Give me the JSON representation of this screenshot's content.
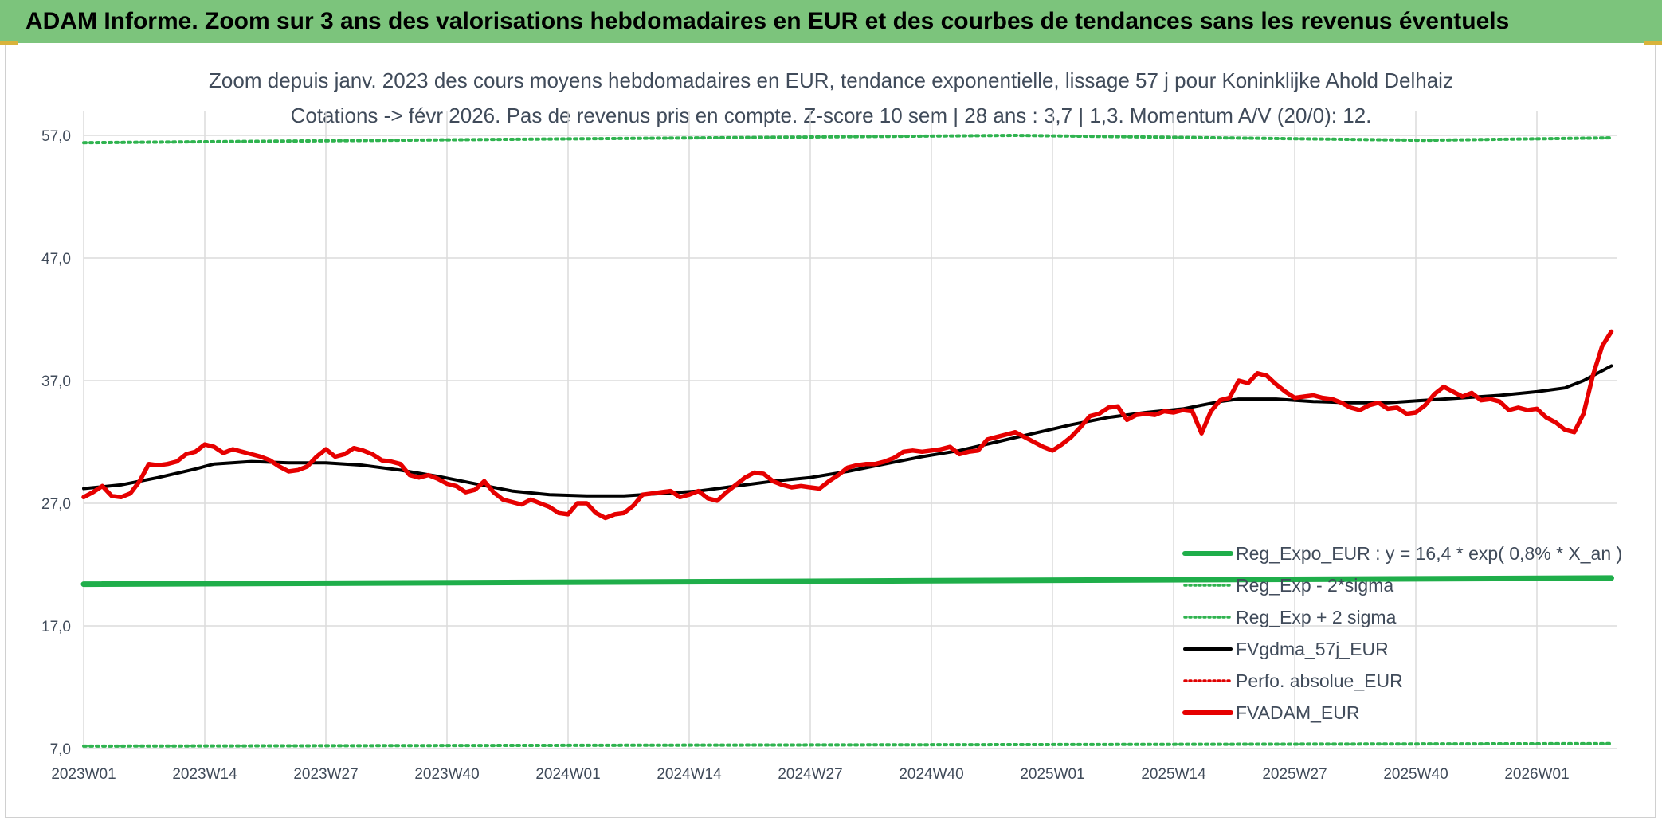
{
  "header": {
    "title": "ADAM Informe. Zoom sur 3 ans des valorisations hebdomadaires en EUR et des courbes de tendances sans les revenus éventuels"
  },
  "colors": {
    "header_bg": "#7cc47c",
    "reg_expo": "#1fae4a",
    "dotted_green": "#2fb34f",
    "fvgdma": "#000000",
    "perfo": "#e00000",
    "fvadam": "#e60000",
    "axis_text": "#404b5a"
  },
  "chart_data": {
    "type": "line",
    "title": "Zoom depuis janv. 2023 des cours moyens hebdomadaires en EUR, tendance exponentielle, lissage 57 j pour Koninklijke Ahold Delhaiz",
    "subtitle": "Cotations -> févr 2026. Pas de revenus pris en compte. Z-score 10 sem | 28 ans : 3,7 | 1,3. Momentum A/V (20/0): 12.",
    "xlabel": "",
    "ylabel": "",
    "ylim": [
      7,
      57
    ],
    "y_ticks": [
      "57,0",
      "47,0",
      "37,0",
      "27,0",
      "17,0",
      "7,0"
    ],
    "y_tick_values": [
      57,
      47,
      37,
      27,
      17,
      7
    ],
    "x_ticks": [
      "2023W01",
      "2023W14",
      "2023W27",
      "2023W40",
      "2024W01",
      "2024W14",
      "2024W27",
      "2024W40",
      "2025W01",
      "2025W14",
      "2025W27",
      "2025W40",
      "2026W01"
    ],
    "x_tick_weeks": [
      0,
      13,
      26,
      39,
      52,
      65,
      78,
      91,
      104,
      117,
      130,
      143,
      156
    ],
    "x_range_weeks": [
      0,
      164
    ],
    "grid": true,
    "legend_position": "bottom-right",
    "legend": [
      {
        "label": "Reg_Expo_EUR : y = 16,4 * exp( 0,8% *  X_an )",
        "style": "thick",
        "color": "#1fae4a"
      },
      {
        "label": "Reg_Exp - 2*sigma",
        "style": "dotted",
        "color": "#2fb34f"
      },
      {
        "label": "Reg_Exp + 2 sigma",
        "style": "dotted",
        "color": "#2fb34f"
      },
      {
        "label": "FVgdma_57j_EUR",
        "style": "solid",
        "color": "#000000"
      },
      {
        "label": "Perfo. absolue_EUR",
        "style": "dotted",
        "color": "#e00000"
      },
      {
        "label": "FVADAM_EUR",
        "style": "thick",
        "color": "#e60000"
      }
    ],
    "series": [
      {
        "name": "Reg_Expo_EUR",
        "points": [
          [
            0,
            20.4
          ],
          [
            164,
            20.9
          ]
        ]
      },
      {
        "name": "Reg_Exp - 2*sigma",
        "points": [
          [
            0,
            7.2
          ],
          [
            164,
            7.4
          ]
        ]
      },
      {
        "name": "Reg_Exp + 2 sigma",
        "points": [
          [
            0,
            56.4
          ],
          [
            100,
            57.0
          ],
          [
            144,
            56.6
          ],
          [
            164,
            56.8
          ]
        ]
      },
      {
        "name": "FVgdma_57j_EUR",
        "points": [
          [
            0,
            28.2
          ],
          [
            4,
            28.5
          ],
          [
            8,
            29.1
          ],
          [
            12,
            29.8
          ],
          [
            14,
            30.2
          ],
          [
            18,
            30.4
          ],
          [
            22,
            30.3
          ],
          [
            26,
            30.3
          ],
          [
            30,
            30.1
          ],
          [
            34,
            29.7
          ],
          [
            38,
            29.2
          ],
          [
            42,
            28.6
          ],
          [
            46,
            28.0
          ],
          [
            50,
            27.7
          ],
          [
            54,
            27.6
          ],
          [
            58,
            27.6
          ],
          [
            62,
            27.8
          ],
          [
            66,
            28.0
          ],
          [
            70,
            28.4
          ],
          [
            74,
            28.8
          ],
          [
            78,
            29.1
          ],
          [
            82,
            29.6
          ],
          [
            86,
            30.2
          ],
          [
            90,
            30.8
          ],
          [
            94,
            31.3
          ],
          [
            98,
            32.0
          ],
          [
            102,
            32.7
          ],
          [
            106,
            33.4
          ],
          [
            110,
            34.0
          ],
          [
            114,
            34.4
          ],
          [
            118,
            34.7
          ],
          [
            122,
            35.3
          ],
          [
            124,
            35.5
          ],
          [
            128,
            35.5
          ],
          [
            132,
            35.3
          ],
          [
            136,
            35.2
          ],
          [
            140,
            35.2
          ],
          [
            144,
            35.4
          ],
          [
            148,
            35.6
          ],
          [
            152,
            35.8
          ],
          [
            156,
            36.1
          ],
          [
            159,
            36.4
          ],
          [
            161,
            37.0
          ],
          [
            164,
            38.2
          ]
        ]
      },
      {
        "name": "FVADAM_EUR",
        "points": [
          [
            0,
            27.5
          ],
          [
            1,
            27.9
          ],
          [
            2,
            28.4
          ],
          [
            3,
            27.6
          ],
          [
            4,
            27.5
          ],
          [
            5,
            27.8
          ],
          [
            6,
            28.8
          ],
          [
            7,
            30.2
          ],
          [
            8,
            30.1
          ],
          [
            9,
            30.2
          ],
          [
            10,
            30.4
          ],
          [
            11,
            31.0
          ],
          [
            12,
            31.2
          ],
          [
            13,
            31.8
          ],
          [
            14,
            31.6
          ],
          [
            15,
            31.1
          ],
          [
            16,
            31.4
          ],
          [
            17,
            31.2
          ],
          [
            18,
            31.0
          ],
          [
            19,
            30.8
          ],
          [
            20,
            30.5
          ],
          [
            21,
            30.0
          ],
          [
            22,
            29.6
          ],
          [
            23,
            29.7
          ],
          [
            24,
            30.0
          ],
          [
            25,
            30.8
          ],
          [
            26,
            31.4
          ],
          [
            27,
            30.8
          ],
          [
            28,
            31.0
          ],
          [
            29,
            31.5
          ],
          [
            30,
            31.3
          ],
          [
            31,
            31.0
          ],
          [
            32,
            30.5
          ],
          [
            33,
            30.4
          ],
          [
            34,
            30.2
          ],
          [
            35,
            29.3
          ],
          [
            36,
            29.1
          ],
          [
            37,
            29.3
          ],
          [
            38,
            29.0
          ],
          [
            39,
            28.6
          ],
          [
            40,
            28.4
          ],
          [
            41,
            27.9
          ],
          [
            42,
            28.1
          ],
          [
            43,
            28.8
          ],
          [
            44,
            27.9
          ],
          [
            45,
            27.3
          ],
          [
            46,
            27.1
          ],
          [
            47,
            26.9
          ],
          [
            48,
            27.3
          ],
          [
            49,
            27.0
          ],
          [
            50,
            26.7
          ],
          [
            51,
            26.2
          ],
          [
            52,
            26.1
          ],
          [
            53,
            27.0
          ],
          [
            54,
            27.0
          ],
          [
            55,
            26.2
          ],
          [
            56,
            25.8
          ],
          [
            57,
            26.1
          ],
          [
            58,
            26.2
          ],
          [
            59,
            26.8
          ],
          [
            60,
            27.7
          ],
          [
            61,
            27.8
          ],
          [
            62,
            27.9
          ],
          [
            63,
            28.0
          ],
          [
            64,
            27.5
          ],
          [
            65,
            27.7
          ],
          [
            66,
            28.0
          ],
          [
            67,
            27.4
          ],
          [
            68,
            27.2
          ],
          [
            69,
            27.9
          ],
          [
            70,
            28.5
          ],
          [
            71,
            29.1
          ],
          [
            72,
            29.5
          ],
          [
            73,
            29.4
          ],
          [
            74,
            28.8
          ],
          [
            75,
            28.5
          ],
          [
            76,
            28.3
          ],
          [
            77,
            28.4
          ],
          [
            78,
            28.3
          ],
          [
            79,
            28.2
          ],
          [
            80,
            28.8
          ],
          [
            81,
            29.3
          ],
          [
            82,
            29.9
          ],
          [
            83,
            30.1
          ],
          [
            84,
            30.2
          ],
          [
            85,
            30.2
          ],
          [
            86,
            30.4
          ],
          [
            87,
            30.7
          ],
          [
            88,
            31.2
          ],
          [
            89,
            31.3
          ],
          [
            90,
            31.2
          ],
          [
            91,
            31.3
          ],
          [
            92,
            31.4
          ],
          [
            93,
            31.6
          ],
          [
            94,
            31.0
          ],
          [
            95,
            31.2
          ],
          [
            96,
            31.3
          ],
          [
            97,
            32.2
          ],
          [
            98,
            32.4
          ],
          [
            99,
            32.6
          ],
          [
            100,
            32.8
          ],
          [
            101,
            32.4
          ],
          [
            102,
            32.0
          ],
          [
            103,
            31.6
          ],
          [
            104,
            31.3
          ],
          [
            105,
            31.8
          ],
          [
            106,
            32.4
          ],
          [
            107,
            33.2
          ],
          [
            108,
            34.1
          ],
          [
            109,
            34.3
          ],
          [
            110,
            34.8
          ],
          [
            111,
            34.9
          ],
          [
            112,
            33.8
          ],
          [
            113,
            34.2
          ],
          [
            114,
            34.3
          ],
          [
            115,
            34.2
          ],
          [
            116,
            34.5
          ],
          [
            117,
            34.4
          ],
          [
            118,
            34.6
          ],
          [
            119,
            34.5
          ],
          [
            120,
            32.7
          ],
          [
            121,
            34.5
          ],
          [
            122,
            35.4
          ],
          [
            123,
            35.6
          ],
          [
            124,
            37.0
          ],
          [
            125,
            36.8
          ],
          [
            126,
            37.6
          ],
          [
            127,
            37.4
          ],
          [
            128,
            36.7
          ],
          [
            129,
            36.1
          ],
          [
            130,
            35.6
          ],
          [
            131,
            35.7
          ],
          [
            132,
            35.8
          ],
          [
            133,
            35.6
          ],
          [
            134,
            35.5
          ],
          [
            135,
            35.2
          ],
          [
            136,
            34.8
          ],
          [
            137,
            34.6
          ],
          [
            138,
            35.0
          ],
          [
            139,
            35.2
          ],
          [
            140,
            34.7
          ],
          [
            141,
            34.8
          ],
          [
            142,
            34.3
          ],
          [
            143,
            34.4
          ],
          [
            144,
            35.0
          ],
          [
            145,
            35.9
          ],
          [
            146,
            36.5
          ],
          [
            147,
            36.1
          ],
          [
            148,
            35.7
          ],
          [
            149,
            36.0
          ],
          [
            150,
            35.4
          ],
          [
            151,
            35.5
          ],
          [
            152,
            35.3
          ],
          [
            153,
            34.6
          ],
          [
            154,
            34.8
          ],
          [
            155,
            34.6
          ],
          [
            156,
            34.7
          ],
          [
            157,
            34.0
          ],
          [
            158,
            33.6
          ],
          [
            159,
            33.0
          ],
          [
            160,
            32.8
          ],
          [
            161,
            34.3
          ],
          [
            162,
            37.4
          ],
          [
            163,
            39.8
          ],
          [
            164,
            41.0
          ]
        ]
      }
    ]
  }
}
